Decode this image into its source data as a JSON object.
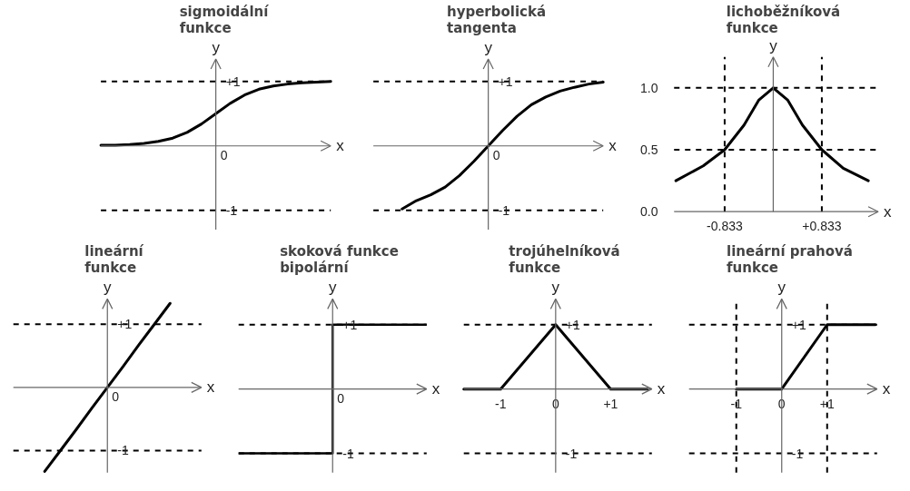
{
  "chart_data": [
    {
      "type": "line",
      "title": "sigmoidální funkce",
      "xlabel": "x",
      "ylabel": "y",
      "categories": [
        null,
        null,
        null,
        null,
        null,
        null,
        null,
        null,
        null,
        null,
        null,
        null,
        null,
        null,
        null,
        null,
        null
      ],
      "ylim": [
        -1.3,
        1.35
      ],
      "yticks": [
        {
          "value": 1,
          "label": "+1"
        },
        {
          "value": -1,
          "label": "-1"
        }
      ],
      "line_style": "solid",
      "annotations": [
        "0"
      ],
      "ref_lines": [
        {
          "axis": "y",
          "value": 1,
          "line_style": "dashed"
        },
        {
          "axis": "y",
          "value": -1,
          "line_style": "dashed"
        }
      ],
      "series": [
        {
          "color": "#000000",
          "values": [
            0.01,
            0.01,
            0.02,
            0.04,
            0.07,
            0.12,
            0.21,
            0.34,
            0.5,
            0.66,
            0.79,
            0.88,
            0.93,
            0.96,
            0.98,
            0.99,
            1.0
          ]
        }
      ]
    },
    {
      "type": "line",
      "title": "hyperbolická tangenta",
      "xlabel": "x",
      "ylabel": "y",
      "categories": [
        null,
        null,
        null,
        null,
        null,
        null,
        null,
        null,
        null,
        null,
        null,
        null,
        null,
        null,
        null,
        null,
        null
      ],
      "ylim": [
        -1.3,
        1.35
      ],
      "yticks": [
        {
          "value": 1,
          "label": "+1"
        },
        {
          "value": -1,
          "label": "-1"
        }
      ],
      "line_style": "solid",
      "annotations": [
        "0"
      ],
      "ref_lines": [
        {
          "axis": "y",
          "value": 1,
          "line_style": "dashed"
        },
        {
          "axis": "y",
          "value": -1,
          "line_style": "dashed"
        }
      ],
      "series": [
        {
          "color": "#000000",
          "values": [
            null,
            null,
            -0.98,
            -0.85,
            -0.76,
            -0.64,
            -0.46,
            -0.24,
            0,
            0.24,
            0.46,
            0.64,
            0.76,
            0.85,
            0.91,
            0.96,
            0.99
          ]
        }
      ]
    },
    {
      "type": "line",
      "title": "lichoběžníková funkce",
      "xlabel": "x",
      "ylabel": "y",
      "xlim": [
        -1.7,
        1.8
      ],
      "ylim": [
        0,
        1.25
      ],
      "xticks": [
        {
          "value": -0.833,
          "label": "-0.833"
        },
        {
          "value": 0.833,
          "label": "+0.833"
        }
      ],
      "yticks": [
        {
          "value": 0,
          "label": "0.0"
        },
        {
          "value": 0.5,
          "label": "0.5"
        },
        {
          "value": 1,
          "label": "1.0"
        }
      ],
      "line_style": "solid",
      "ref_lines": [
        {
          "axis": "y",
          "value": 1,
          "line_style": "dashed"
        },
        {
          "axis": "y",
          "value": 0.5,
          "line_style": "dashed"
        },
        {
          "axis": "x",
          "value": -0.833,
          "line_style": "dashed"
        },
        {
          "axis": "x",
          "value": 0.833,
          "line_style": "dashed"
        }
      ],
      "series": [
        {
          "color": "#000000",
          "x": [
            -1.67,
            -1.2,
            -0.833,
            -0.5,
            -0.25,
            0,
            0.25,
            0.5,
            0.833,
            1.2,
            1.63
          ],
          "values": [
            0.25,
            0.37,
            0.5,
            0.7,
            0.9,
            1.0,
            0.9,
            0.7,
            0.5,
            0.35,
            0.25
          ]
        }
      ]
    },
    {
      "type": "line",
      "title": "lineární funkce",
      "xlabel": "x",
      "ylabel": "y",
      "categories": [
        null,
        null,
        null,
        null,
        null,
        null,
        null,
        null,
        null,
        null,
        null,
        null,
        null
      ],
      "ylim": [
        -1.35,
        1.4
      ],
      "yticks": [
        {
          "value": 1,
          "label": "+1"
        },
        {
          "value": -1,
          "label": "-1"
        }
      ],
      "line_style": "solid",
      "annotations": [
        "0"
      ],
      "ref_lines": [
        {
          "axis": "y",
          "value": 1,
          "line_style": "dashed"
        },
        {
          "axis": "y",
          "value": -1,
          "line_style": "dashed"
        }
      ],
      "series": [
        {
          "color": "#000000",
          "values": [
            null,
            null,
            -1.33,
            -1,
            -0.67,
            -0.33,
            0,
            0.33,
            0.67,
            1,
            1.33,
            null,
            null
          ]
        }
      ]
    },
    {
      "type": "step",
      "title": "skoková funkce bipolární",
      "xlabel": "x",
      "ylabel": "y",
      "categories": [
        null,
        null,
        null,
        null,
        null,
        null,
        null,
        null,
        null
      ],
      "ylim": [
        -1.3,
        1.4
      ],
      "yticks": [
        {
          "value": 1,
          "label": "+1"
        },
        {
          "value": -1,
          "label": "-1"
        }
      ],
      "line_style": "solid",
      "annotations": [
        "0"
      ],
      "ref_lines": [
        {
          "axis": "y",
          "value": 1,
          "line_style": "dashed"
        },
        {
          "axis": "y",
          "value": -1,
          "line_style": "dashed"
        }
      ],
      "series": [
        {
          "color": "#000000",
          "values": [
            -1,
            -1,
            -1,
            -1,
            1,
            1,
            1,
            1,
            1
          ]
        }
      ]
    },
    {
      "type": "line",
      "title": "trojúhelníková funkce",
      "xlabel": "x",
      "ylabel": "y",
      "xlim": [
        -1.67,
        1.75
      ],
      "ylim": [
        -1.3,
        1.4
      ],
      "xticks": [
        {
          "value": -1,
          "label": "-1"
        },
        {
          "value": 0,
          "label": "0"
        },
        {
          "value": 1,
          "label": "+1"
        }
      ],
      "yticks": [
        {
          "value": 1,
          "label": "+1"
        },
        {
          "value": -1,
          "label": "-1"
        }
      ],
      "line_style": "solid",
      "ref_lines": [
        {
          "axis": "y",
          "value": 1,
          "line_style": "dashed"
        },
        {
          "axis": "y",
          "value": -1,
          "line_style": "dashed"
        }
      ],
      "series": [
        {
          "color": "#000000",
          "x": [
            -1.67,
            -1,
            0,
            1,
            1.67
          ],
          "values": [
            0,
            0,
            1,
            0,
            0
          ]
        }
      ]
    },
    {
      "type": "line",
      "title": "lineární prahová funkce",
      "xlabel": "x",
      "ylabel": "y",
      "xlim": [
        -2.04,
        2.1
      ],
      "ylim": [
        -1.3,
        1.4
      ],
      "xticks": [
        {
          "value": -1,
          "label": "-1"
        },
        {
          "value": 0,
          "label": "0"
        },
        {
          "value": 1,
          "label": "+1"
        }
      ],
      "yticks": [
        {
          "value": 1,
          "label": "+1"
        },
        {
          "value": -1,
          "label": "-1"
        }
      ],
      "line_style": "solid",
      "ref_lines": [
        {
          "axis": "y",
          "value": 1,
          "line_style": "dashed"
        },
        {
          "axis": "y",
          "value": -1,
          "line_style": "dashed"
        },
        {
          "axis": "x",
          "value": -1,
          "line_style": "dashed"
        },
        {
          "axis": "x",
          "value": 1,
          "line_style": "dashed"
        }
      ],
      "series": [
        {
          "color": "#000000",
          "x": [
            -1,
            0,
            1,
            2.06
          ],
          "values": [
            0,
            0,
            1,
            1
          ]
        }
      ]
    }
  ]
}
